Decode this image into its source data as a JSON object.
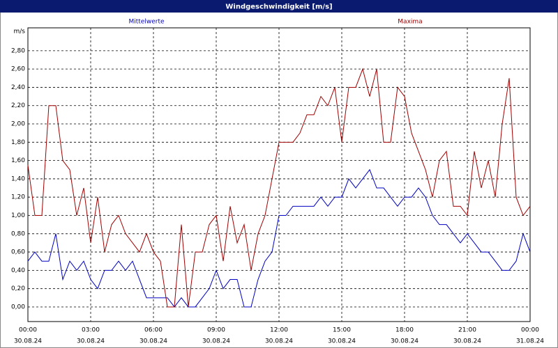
{
  "chart_data": {
    "type": "line",
    "title": "Windgeschwindigkeit [m/s]",
    "y_label": "m/s",
    "x": [
      0,
      20,
      40,
      60,
      80,
      100,
      120,
      140,
      160,
      180,
      200,
      220,
      240,
      260,
      280,
      300,
      320,
      340,
      360,
      380,
      400,
      420,
      440,
      460,
      480,
      500,
      520,
      540,
      560,
      580,
      600,
      620,
      640,
      660,
      680,
      700,
      720,
      740,
      760,
      780,
      800,
      820,
      840,
      860,
      880,
      900,
      920,
      940,
      960,
      980,
      1000,
      1020,
      1040,
      1060,
      1080,
      1100,
      1120,
      1140,
      1160,
      1180,
      1200,
      1220,
      1240,
      1260,
      1280,
      1300,
      1320,
      1340,
      1360,
      1380,
      1400,
      1420,
      1440
    ],
    "series": [
      {
        "name": "Mittelwerte",
        "color": "#0000c0",
        "values": [
          0.5,
          0.6,
          0.5,
          0.5,
          0.8,
          0.3,
          0.5,
          0.4,
          0.5,
          0.3,
          0.2,
          0.4,
          0.4,
          0.5,
          0.4,
          0.5,
          0.3,
          0.1,
          0.1,
          0.1,
          0.1,
          0.0,
          0.1,
          0.0,
          0.0,
          0.1,
          0.2,
          0.4,
          0.2,
          0.3,
          0.3,
          0.0,
          0.0,
          0.3,
          0.5,
          0.6,
          1.0,
          1.0,
          1.1,
          1.1,
          1.1,
          1.1,
          1.2,
          1.1,
          1.2,
          1.2,
          1.4,
          1.3,
          1.4,
          1.5,
          1.3,
          1.3,
          1.2,
          1.1,
          1.2,
          1.2,
          1.3,
          1.2,
          1.0,
          0.9,
          0.9,
          0.8,
          0.7,
          0.8,
          0.7,
          0.6,
          0.6,
          0.5,
          0.4,
          0.4,
          0.5,
          0.8,
          0.6
        ]
      },
      {
        "name": "Maxima",
        "color": "#a00000",
        "values": [
          1.55,
          1.0,
          1.0,
          2.2,
          2.2,
          1.6,
          1.5,
          1.0,
          1.3,
          0.7,
          1.2,
          0.6,
          0.9,
          1.0,
          0.8,
          0.7,
          0.6,
          0.8,
          0.6,
          0.5,
          0.0,
          0.0,
          0.9,
          0.0,
          0.6,
          0.6,
          0.9,
          1.0,
          0.5,
          1.1,
          0.7,
          0.9,
          0.4,
          0.8,
          1.0,
          1.4,
          1.8,
          1.8,
          1.8,
          1.9,
          2.1,
          2.1,
          2.3,
          2.2,
          2.4,
          1.8,
          2.4,
          2.4,
          2.6,
          2.3,
          2.6,
          1.8,
          1.8,
          2.4,
          2.3,
          1.9,
          1.7,
          1.5,
          1.2,
          1.6,
          1.7,
          1.1,
          1.1,
          1.0,
          1.7,
          1.3,
          1.6,
          1.2,
          2.0,
          2.5,
          1.2,
          1.0,
          1.1
        ]
      }
    ],
    "xlim": [
      0,
      1440
    ],
    "xticks": [
      {
        "value": 0,
        "label": "00:00",
        "date": "30.08.24"
      },
      {
        "value": 180,
        "label": "03:00",
        "date": "30.08.24"
      },
      {
        "value": 360,
        "label": "06:00",
        "date": "30.08.24"
      },
      {
        "value": 540,
        "label": "09:00",
        "date": "30.08.24"
      },
      {
        "value": 720,
        "label": "12:00",
        "date": "30.08.24"
      },
      {
        "value": 900,
        "label": "15:00",
        "date": "30.08.24"
      },
      {
        "value": 1080,
        "label": "18:00",
        "date": "30.08.24"
      },
      {
        "value": 1260,
        "label": "21:00",
        "date": "30.08.24"
      },
      {
        "value": 1440,
        "label": "00:00",
        "date": "31.08.24"
      }
    ],
    "ylim": [
      -0.16,
      3.05
    ],
    "yticks": [
      {
        "value": 0,
        "label": "0,00"
      },
      {
        "value": 0.2,
        "label": "0,20"
      },
      {
        "value": 0.4,
        "label": "0,40"
      },
      {
        "value": 0.6,
        "label": "0,60"
      },
      {
        "value": 0.8,
        "label": "0,80"
      },
      {
        "value": 1.0,
        "label": "1,00"
      },
      {
        "value": 1.2,
        "label": "1,20"
      },
      {
        "value": 1.4,
        "label": "1,40"
      },
      {
        "value": 1.6,
        "label": "1,60"
      },
      {
        "value": 1.8,
        "label": "1,80"
      },
      {
        "value": 2.0,
        "label": "2,00"
      },
      {
        "value": 2.2,
        "label": "2,20"
      },
      {
        "value": 2.4,
        "label": "2,40"
      },
      {
        "value": 2.6,
        "label": "2,60"
      },
      {
        "value": 2.8,
        "label": "2,80"
      }
    ],
    "grid": true
  }
}
